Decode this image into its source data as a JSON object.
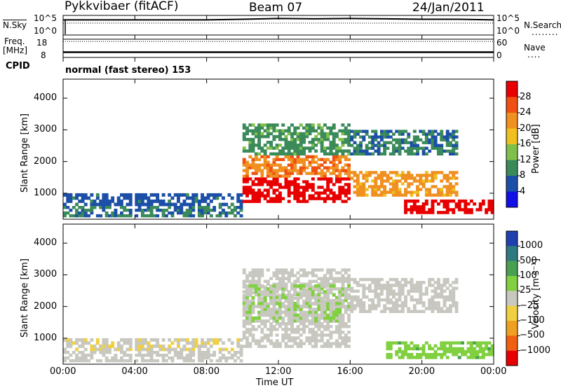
{
  "header": {
    "station": "Pykkvibaer (fitACF)",
    "beam": "Beam 07",
    "date": "24/Jan/2011"
  },
  "nsky_panel": {
    "left_label": "N.Sky",
    "left_top_tick": "10^5",
    "left_bottom_tick": "10^0",
    "right_top_tick": "10^5",
    "right_bottom_tick": "10^0",
    "right_label": "N.Search",
    "right_legend_line": "........"
  },
  "freq_panel": {
    "left_label_line1": "Freq.",
    "left_label_line2": "[MHz]",
    "left_top_tick": "18",
    "left_bottom_tick": "8",
    "right_top_tick": "60",
    "right_bottom_tick": "0",
    "right_label": "Nave",
    "right_legend_line": "...."
  },
  "cpid": {
    "label": "CPID",
    "value": "normal (fast stereo) 153"
  },
  "power_panel": {
    "ylabel": "Slant Range [km]",
    "yticks": [
      "1000",
      "2000",
      "3000",
      "4000"
    ],
    "colorbar_label": "Power [dB]",
    "colorbar_ticks": [
      "4",
      "8",
      "12",
      "16",
      "20",
      "24",
      "28"
    ],
    "colorbar_colors": [
      "#1010e6",
      "#1c4fa8",
      "#3a8a5a",
      "#7fc04a",
      "#f0c020",
      "#f09020",
      "#f05010",
      "#e80000"
    ]
  },
  "velocity_panel": {
    "ylabel": "Slant Range [km]",
    "yticks": [
      "1000",
      "2000",
      "3000",
      "4000"
    ],
    "colorbar_label": "Velocity [m s⁻¹]",
    "colorbar_ticks": [
      "1000",
      "500",
      "100",
      "25",
      "−25",
      "−100",
      "−500",
      "−1000"
    ],
    "colorbar_colors": [
      "#2040b0",
      "#2e7a80",
      "#48a050",
      "#80d040",
      "#c8c8c0",
      "#f0d040",
      "#f0a020",
      "#f06010",
      "#e80000"
    ]
  },
  "xaxis": {
    "label": "Time UT",
    "ticks": [
      "00:00",
      "04:00",
      "08:00",
      "12:00",
      "16:00",
      "20:00",
      "00:00"
    ]
  },
  "chart_data": [
    {
      "type": "line",
      "title": "N.Sky / N.Search",
      "x": [
        0,
        4,
        8,
        10,
        12,
        14,
        16,
        18,
        20,
        22,
        24
      ],
      "series": [
        {
          "name": "N.Sky",
          "values": [
            20000.0,
            20000.0,
            20000.0,
            30000.0,
            50000.0,
            40000.0,
            50000.0,
            40000.0,
            30000.0,
            30000.0,
            20000.0
          ]
        }
      ],
      "ylim": [
        1,
        100000
      ],
      "yscale": "log"
    },
    {
      "type": "line",
      "title": "Freq. / Nave",
      "x": [
        0,
        3,
        6,
        12,
        18,
        24
      ],
      "series": [
        {
          "name": "Freq.",
          "values": [
            10.5,
            10.5,
            10.5,
            10.5,
            10.5,
            10.5
          ]
        },
        {
          "name": "Nave",
          "values": [
            40,
            40,
            40,
            40,
            40,
            40
          ]
        }
      ],
      "ylim": [
        8,
        18
      ],
      "y2lim": [
        0,
        60
      ]
    },
    {
      "type": "heatmap",
      "title": "Power",
      "xlabel": "Time UT",
      "ylabel": "Slant Range [km]",
      "xlim": [
        0,
        24
      ],
      "ylim": [
        180,
        4600
      ],
      "colorbar_range": [
        0,
        30
      ],
      "regions": [
        {
          "t": [
            0,
            10
          ],
          "r": [
            600,
            1000
          ],
          "value": 6
        },
        {
          "t": [
            0,
            10
          ],
          "r": [
            250,
            600
          ],
          "value": 8
        },
        {
          "t": [
            10,
            16
          ],
          "r": [
            700,
            1500
          ],
          "value": 29
        },
        {
          "t": [
            10,
            16
          ],
          "r": [
            1500,
            2200
          ],
          "value": 22
        },
        {
          "t": [
            10,
            16
          ],
          "r": [
            2200,
            3200
          ],
          "value": 10
        },
        {
          "t": [
            16,
            22
          ],
          "r": [
            900,
            1700
          ],
          "value": 20
        },
        {
          "t": [
            16,
            22
          ],
          "r": [
            2200,
            3000
          ],
          "value": 8
        },
        {
          "t": [
            19,
            24
          ],
          "r": [
            350,
            800
          ],
          "value": 29
        }
      ]
    },
    {
      "type": "heatmap",
      "title": "Velocity",
      "xlabel": "Time UT",
      "ylabel": "Slant Range [km]",
      "xlim": [
        0,
        24
      ],
      "ylim": [
        180,
        4600
      ],
      "colorbar_range": [
        -1000,
        1000
      ],
      "regions": [
        {
          "t": [
            0,
            10
          ],
          "r": [
            600,
            1000
          ],
          "value": -100
        },
        {
          "t": [
            0,
            10
          ],
          "r": [
            250,
            600
          ],
          "value": 0
        },
        {
          "t": [
            10,
            16
          ],
          "r": [
            700,
            3200
          ],
          "value": 0
        },
        {
          "t": [
            10,
            16
          ],
          "r": [
            1500,
            2700
          ],
          "value": 100
        },
        {
          "t": [
            16,
            22
          ],
          "r": [
            1800,
            2900
          ],
          "value": 0
        },
        {
          "t": [
            18,
            24
          ],
          "r": [
            350,
            900
          ],
          "value": 300
        }
      ]
    }
  ]
}
